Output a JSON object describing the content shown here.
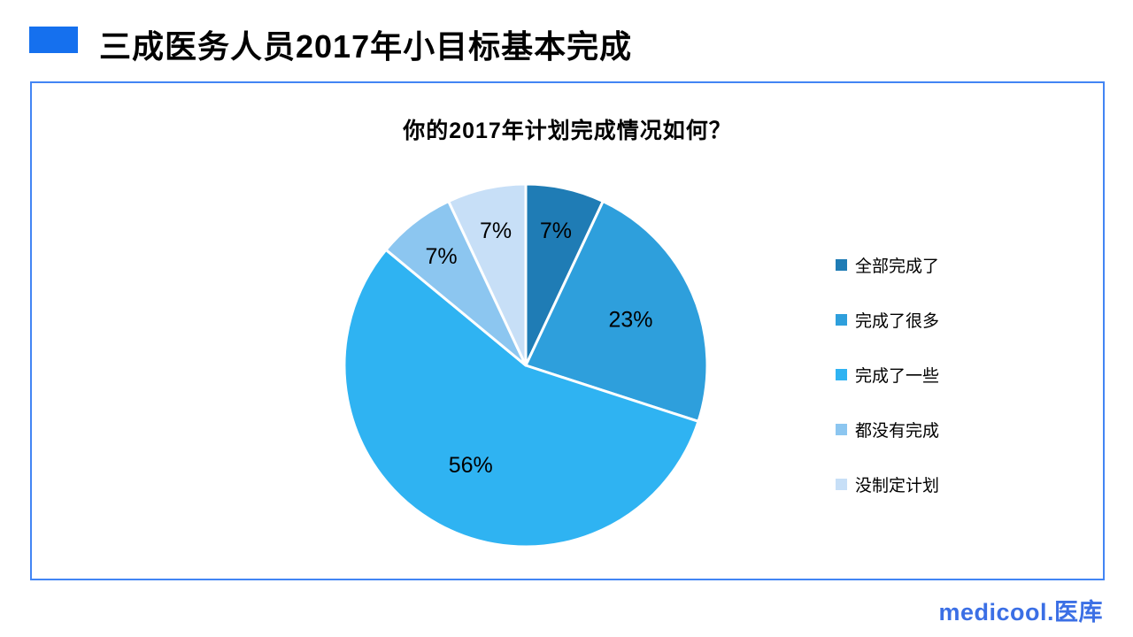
{
  "header": {
    "title": "三成医务人员2017年小目标基本完成",
    "accent_color": "#1570EE"
  },
  "panel": {
    "border_color": "#4285F4"
  },
  "chart_data": {
    "type": "pie",
    "title": "你的2017年计划完成情况如何？",
    "categories": [
      "全部完成了",
      "完成了很多",
      "完成了一些",
      "都没有完成",
      "没制定计划"
    ],
    "values": [
      7,
      23,
      56,
      7,
      7
    ],
    "data_labels": [
      "7%",
      "23%",
      "56%",
      "7%",
      "7%"
    ],
    "colors": [
      "#1F7CB5",
      "#2E9FDC",
      "#2FB3F2",
      "#8CC6F0",
      "#C7DFF7"
    ],
    "label_color": "#000000",
    "slice_border_color": "#FFFFFF",
    "legend_position": "right",
    "start_angle_deg": 0,
    "direction": "clockwise"
  },
  "footer": {
    "logo_text": "medicool.医库",
    "logo_color": "#3B6FE5"
  }
}
